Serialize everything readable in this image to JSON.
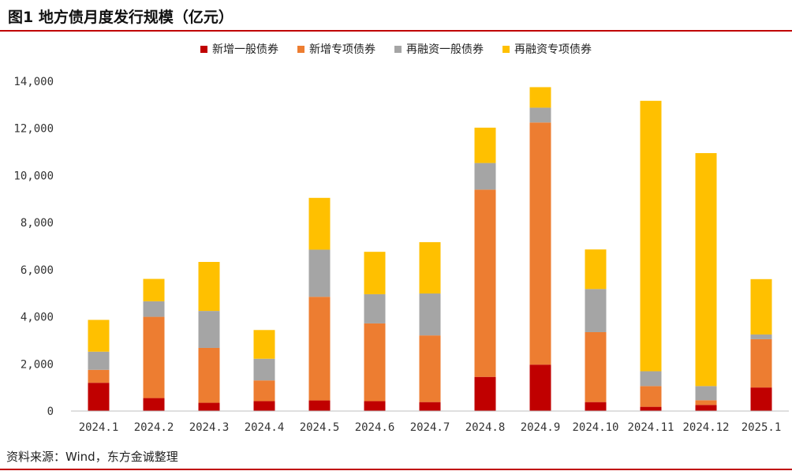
{
  "title": "图1 地方债月度发行规模（亿元）",
  "source": "资料来源：Wind，东方金诚整理",
  "chart_data": {
    "type": "bar",
    "stacked": true,
    "title": "图1 地方债月度发行规模（亿元）",
    "categories": [
      "2024.1",
      "2024.2",
      "2024.3",
      "2024.4",
      "2024.5",
      "2024.6",
      "2024.7",
      "2024.8",
      "2024.9",
      "2024.10",
      "2024.11",
      "2024.12",
      "2025.1"
    ],
    "series": [
      {
        "name": "新增一般债券",
        "color": "#c00000",
        "values": [
          1200,
          550,
          350,
          420,
          450,
          420,
          380,
          1450,
          1970,
          380,
          180,
          260,
          1000
        ]
      },
      {
        "name": "新增专项债券",
        "color": "#ed7d31",
        "values": [
          550,
          3450,
          2330,
          880,
          4400,
          3300,
          2830,
          7950,
          10280,
          2970,
          880,
          200,
          2050
        ]
      },
      {
        "name": "再融资一般债券",
        "color": "#a5a5a5",
        "values": [
          770,
          660,
          1570,
          920,
          2000,
          1240,
          1780,
          1130,
          630,
          1830,
          630,
          600,
          200
        ]
      },
      {
        "name": "再融资专项债券",
        "color": "#ffc000",
        "values": [
          1350,
          950,
          2080,
          1220,
          2200,
          1800,
          2180,
          1500,
          870,
          1680,
          11480,
          9890,
          2350
        ]
      }
    ],
    "ylim": [
      0,
      14000
    ],
    "yticks": [
      0,
      2000,
      4000,
      6000,
      8000,
      10000,
      12000,
      14000
    ],
    "ytick_labels": [
      "0",
      "2,000",
      "4,000",
      "6,000",
      "8,000",
      "10,000",
      "12,000",
      "14,000"
    ],
    "grid": false,
    "legend_position": "top-center"
  }
}
